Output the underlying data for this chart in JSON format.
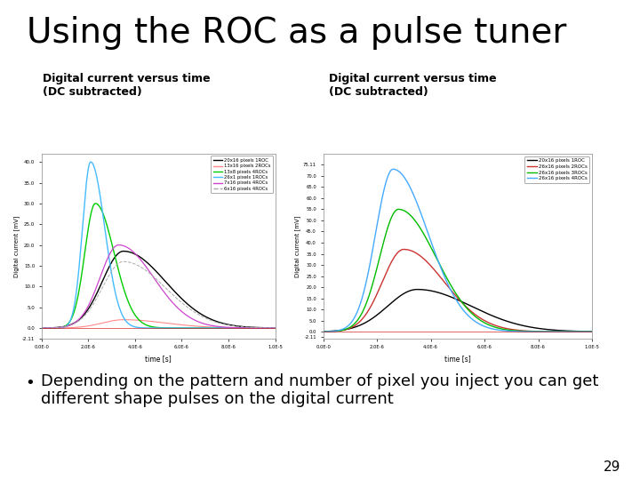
{
  "title": "Using the ROC as a pulse tuner",
  "title_fontsize": 28,
  "background_color": "#ffffff",
  "bullet_text_line1": "Depending on the pattern and number of pixel you inject you can get",
  "bullet_text_line2": "different shape pulses on the digital current",
  "bullet_fontsize": 13,
  "page_number": "29",
  "chart1_title": "Digital current versus time\n(DC subtracted)",
  "chart2_title": "Digital current versus time\n(DC subtracted)",
  "chart1_legend": [
    "20x16 pixels 1ROC",
    "13x16 pixels 2ROCs",
    "13x8 pixels 4ROCs",
    "26x1 pixels 1ROCs",
    "7x16 pixels 4ROCs",
    "6x16 pixels 4ROCs"
  ],
  "chart1_colors": [
    "#000000",
    "#ff8888",
    "#00cc00",
    "#44bbff",
    "#cc44cc",
    "#aaaaaa"
  ],
  "chart1_linestyles": [
    "-",
    "-",
    "-",
    "-",
    "-",
    "--"
  ],
  "chart2_legend": [
    "20x16 pixels 1ROC",
    "26x16 pixels 2ROCs",
    "26x16 pixels 3ROCs",
    "26x16 pixels 4ROCs"
  ],
  "chart2_colors": [
    "#000000",
    "#cc3333",
    "#00bb00",
    "#44aaff"
  ],
  "ylabel": "Digital current [mV]",
  "xlabel": "time [s]"
}
